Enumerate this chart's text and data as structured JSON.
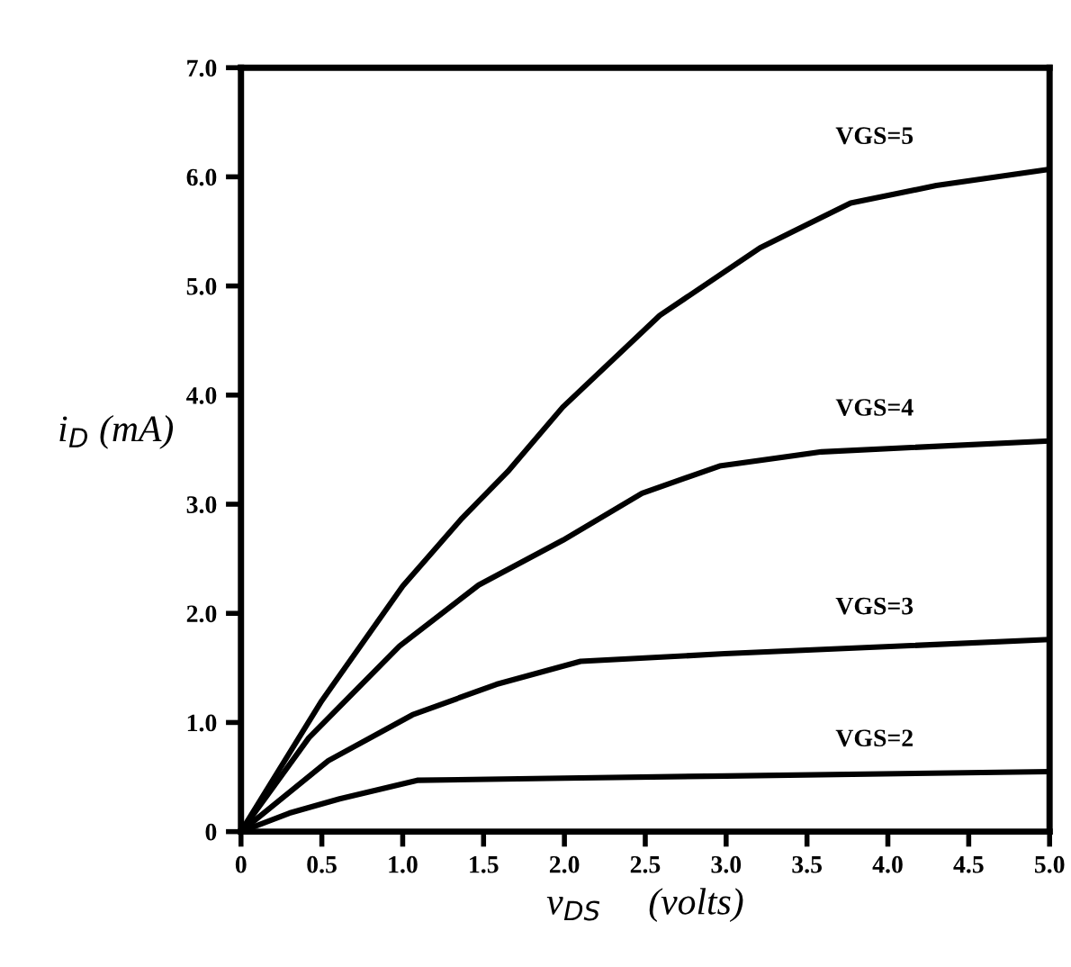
{
  "chart_data": {
    "type": "line",
    "xlabel": "v$_{DS}$     (volts)",
    "ylabel": "i$_{D}$ (mA)",
    "xlim": [
      0,
      5.0
    ],
    "ylim": [
      0,
      7.0
    ],
    "xticks": [
      0,
      0.5,
      {
        "value": 1.0,
        "label": "1.0"
      },
      1.5,
      {
        "value": 2.0,
        "label": "2.0"
      },
      2.5,
      {
        "value": 3.0,
        "label": "3.0"
      },
      3.5,
      {
        "value": 4.0,
        "label": "4.0"
      },
      4.5,
      {
        "value": 5.0,
        "label": "5.0"
      }
    ],
    "yticks": [
      0,
      {
        "value": 1.0,
        "label": "1.0"
      },
      {
        "value": 2.0,
        "label": "2.0"
      },
      {
        "value": 3.0,
        "label": "3.0"
      },
      {
        "value": 4.0,
        "label": "4.0"
      },
      {
        "value": 5.0,
        "label": "5.0"
      },
      {
        "value": 6.0,
        "label": "6.0"
      },
      {
        "value": 7.0,
        "label": "7.0"
      }
    ],
    "grid": false,
    "legend": false,
    "marker": "none",
    "line_style": "solid",
    "series": [
      {
        "name": "VGS=5",
        "color": "#000000",
        "x": [
          0,
          0.5,
          1.0,
          1.36,
          1.65,
          1.99,
          2.59,
          3.21,
          3.77,
          4.3,
          5.0
        ],
        "values": [
          0,
          1.2,
          2.25,
          2.86,
          3.3,
          3.89,
          4.73,
          5.35,
          5.76,
          5.92,
          6.07
        ]
      },
      {
        "name": "VGS=4",
        "color": "#000000",
        "x": [
          0,
          0.42,
          0.98,
          1.47,
          1.99,
          2.48,
          2.96,
          3.59,
          5.0
        ],
        "values": [
          0,
          0.86,
          1.7,
          2.26,
          2.67,
          3.1,
          3.35,
          3.48,
          3.58
        ]
      },
      {
        "name": "VGS=3",
        "color": "#000000",
        "x": [
          0,
          0.54,
          1.06,
          1.58,
          2.1,
          2.99,
          5.0
        ],
        "values": [
          0,
          0.65,
          1.07,
          1.35,
          1.56,
          1.63,
          1.76
        ]
      },
      {
        "name": "VGS=2",
        "color": "#000000",
        "x": [
          0,
          0.3,
          0.61,
          1.09,
          2.0,
          3.0,
          5.0
        ],
        "values": [
          0,
          0.17,
          0.3,
          0.47,
          0.49,
          0.51,
          0.55
        ]
      }
    ]
  }
}
